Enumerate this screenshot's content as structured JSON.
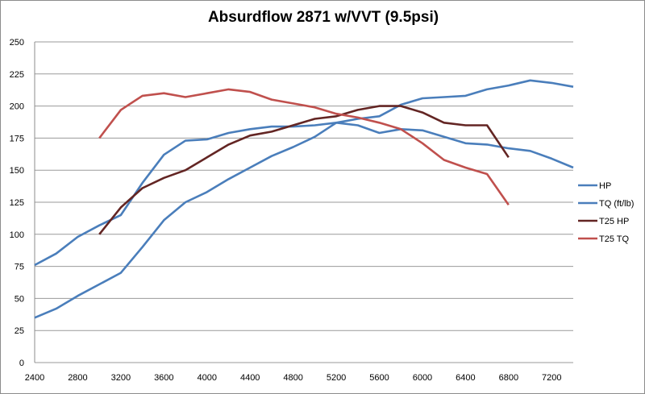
{
  "chart_data": {
    "type": "line",
    "title": "Absurdflow 2871 w/VVT (9.5psi)",
    "xlabel": "",
    "ylabel": "",
    "xlim": [
      2400,
      7400
    ],
    "ylim": [
      0,
      250
    ],
    "x_ticks": [
      2400,
      2800,
      3200,
      3600,
      4000,
      4400,
      4800,
      5200,
      5600,
      6000,
      6400,
      6800,
      7200
    ],
    "y_ticks": [
      0,
      25,
      50,
      75,
      100,
      125,
      150,
      175,
      200,
      225,
      250
    ],
    "grid": true,
    "legend_position": "right",
    "series": [
      {
        "name": "HP",
        "color": "#4a7ebb",
        "x": [
          2400,
          2600,
          2800,
          3000,
          3200,
          3400,
          3600,
          3800,
          4000,
          4200,
          4400,
          4600,
          4800,
          5000,
          5200,
          5400,
          5600,
          5800,
          6000,
          6200,
          6400,
          6600,
          6800,
          7000,
          7200,
          7400
        ],
        "values": [
          35,
          42,
          52,
          61,
          70,
          90,
          111,
          125,
          133,
          143,
          152,
          161,
          168,
          176,
          187,
          190,
          192,
          201,
          206,
          207,
          208,
          213,
          216,
          220,
          218,
          215
        ]
      },
      {
        "name": "TQ (ft/lb)",
        "color": "#4a7ebb",
        "x": [
          2400,
          2600,
          2800,
          3000,
          3200,
          3400,
          3600,
          3800,
          4000,
          4200,
          4400,
          4600,
          4800,
          5000,
          5200,
          5400,
          5600,
          5800,
          6000,
          6200,
          6400,
          6600,
          6800,
          7000,
          7200,
          7400
        ],
        "values": [
          76,
          85,
          98,
          107,
          115,
          140,
          162,
          173,
          174,
          179,
          182,
          184,
          184,
          185,
          187,
          185,
          179,
          182,
          181,
          176,
          171,
          170,
          167,
          165,
          159,
          152
        ]
      },
      {
        "name": "T25 HP",
        "color": "#632523",
        "x": [
          3000,
          3200,
          3400,
          3600,
          3800,
          4000,
          4200,
          4400,
          4600,
          4800,
          5000,
          5200,
          5400,
          5600,
          5800,
          6000,
          6200,
          6400,
          6600,
          6800
        ],
        "values": [
          100,
          121,
          136,
          144,
          150,
          160,
          170,
          177,
          180,
          185,
          190,
          192,
          197,
          200,
          200,
          195,
          187,
          185,
          185,
          160
        ]
      },
      {
        "name": "T25 TQ",
        "color": "#c0504d",
        "x": [
          3000,
          3200,
          3400,
          3600,
          3800,
          4000,
          4200,
          4400,
          4600,
          4800,
          5000,
          5200,
          5400,
          5600,
          5800,
          6000,
          6200,
          6400,
          6600,
          6800
        ],
        "values": [
          175,
          197,
          208,
          210,
          207,
          210,
          213,
          211,
          205,
          202,
          199,
          194,
          191,
          187,
          182,
          171,
          158,
          152,
          147,
          123
        ]
      }
    ]
  }
}
